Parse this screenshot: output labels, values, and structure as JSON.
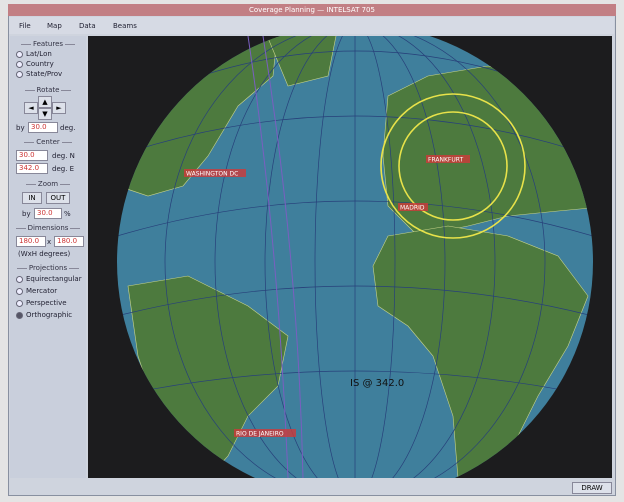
{
  "window": {
    "title": "Coverage Planning — INTELSAT 705"
  },
  "menu": [
    "File",
    "Map",
    "Data",
    "Beams"
  ],
  "panel": {
    "features": {
      "heading": "Features",
      "items": [
        "Lat/Lon",
        "Country",
        "State/Prov"
      ]
    },
    "rotate": {
      "heading": "Rotate",
      "by_label": "by",
      "step": "30.0",
      "unit": "deg."
    },
    "center": {
      "heading": "Center",
      "lat": "30.0",
      "lat_unit": "deg. N",
      "lon": "342.0",
      "lon_unit": "deg. E"
    },
    "zoom": {
      "heading": "Zoom",
      "in": "IN",
      "out": "OUT",
      "by_label": "by",
      "step": "30.0",
      "unit": "%"
    },
    "dimensions": {
      "heading": "Dimensions",
      "width": "180.0",
      "times": "x",
      "height": "180.0",
      "note": "(WxH degrees)"
    },
    "projections": {
      "heading": "Projections",
      "items": [
        "Equirectangular",
        "Mercator",
        "Perspective",
        "Orthographic"
      ]
    }
  },
  "map": {
    "labels": [
      "WASHINGTON DC",
      "FRANKFURT",
      "MADRID",
      "RIO DE JANEIRO"
    ],
    "satellite": "IS @ 342.0"
  },
  "draw_button": "DRAW"
}
